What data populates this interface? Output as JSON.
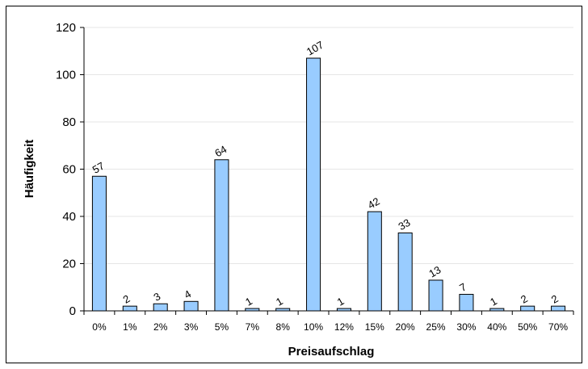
{
  "chart_data": {
    "type": "bar",
    "title": "",
    "xlabel": "Preisaufschlag",
    "ylabel": "Häufigkeit",
    "categories": [
      "0%",
      "1%",
      "2%",
      "3%",
      "5%",
      "7%",
      "8%",
      "10%",
      "12%",
      "15%",
      "20%",
      "25%",
      "30%",
      "40%",
      "50%",
      "70%"
    ],
    "values": [
      57,
      2,
      3,
      4,
      64,
      1,
      1,
      107,
      1,
      42,
      33,
      13,
      7,
      1,
      2,
      2
    ],
    "ylim": [
      0,
      120
    ],
    "yticks": [
      0,
      20,
      40,
      60,
      80,
      100,
      120
    ],
    "grid": true,
    "legend": "none",
    "data_labels": true,
    "bar_color": "#99ccff",
    "bar_edge_color": "#000000",
    "grid_color": "#e6e6e6"
  }
}
